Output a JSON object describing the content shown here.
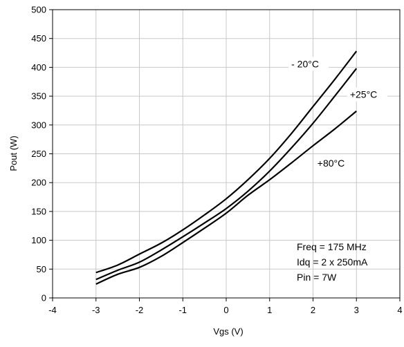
{
  "chart_data": {
    "type": "line",
    "xlabel": "Vgs (V)",
    "ylabel": "Pout (W)",
    "xlim": [
      -4,
      4
    ],
    "ylim": [
      0,
      500
    ],
    "xticks": [
      -4,
      -3,
      -2,
      -1,
      0,
      1,
      2,
      3,
      4
    ],
    "yticks": [
      0,
      50,
      100,
      150,
      200,
      250,
      300,
      350,
      400,
      450,
      500
    ],
    "grid": true,
    "series": [
      {
        "name": "- 20°C",
        "x": [
          -3,
          -2.5,
          -2,
          -1.5,
          -1,
          -0.5,
          0,
          0.5,
          1,
          1.5,
          2,
          2.5,
          3
        ],
        "values": [
          44,
          57,
          76,
          95,
          118,
          144,
          172,
          205,
          242,
          285,
          332,
          379,
          428
        ]
      },
      {
        "name": "+25°C",
        "x": [
          -3,
          -2.5,
          -2,
          -1.5,
          -1,
          -0.5,
          0,
          0.5,
          1,
          1.5,
          2,
          2.5,
          3
        ],
        "values": [
          32,
          48,
          62,
          83,
          106,
          130,
          155,
          185,
          220,
          260,
          303,
          350,
          398
        ]
      },
      {
        "name": "+80°C",
        "x": [
          -3,
          -2.5,
          -2,
          -1.5,
          -1,
          -0.5,
          0,
          0.5,
          1,
          1.5,
          2,
          2.5,
          3
        ],
        "values": [
          24,
          41,
          53,
          72,
          96,
          121,
          147,
          178,
          205,
          234,
          264,
          293,
          324
        ]
      }
    ],
    "series_labels": [
      {
        "text": "- 20°C",
        "x": 1.5,
        "y": 400
      },
      {
        "text": "+25°C",
        "x": 2.85,
        "y": 347
      },
      {
        "text": "+80°C",
        "x": 2.1,
        "y": 228
      }
    ],
    "annotations": [
      "Freq = 175 MHz",
      "Idq = 2 x 250mA",
      "Pin = 7W"
    ]
  }
}
